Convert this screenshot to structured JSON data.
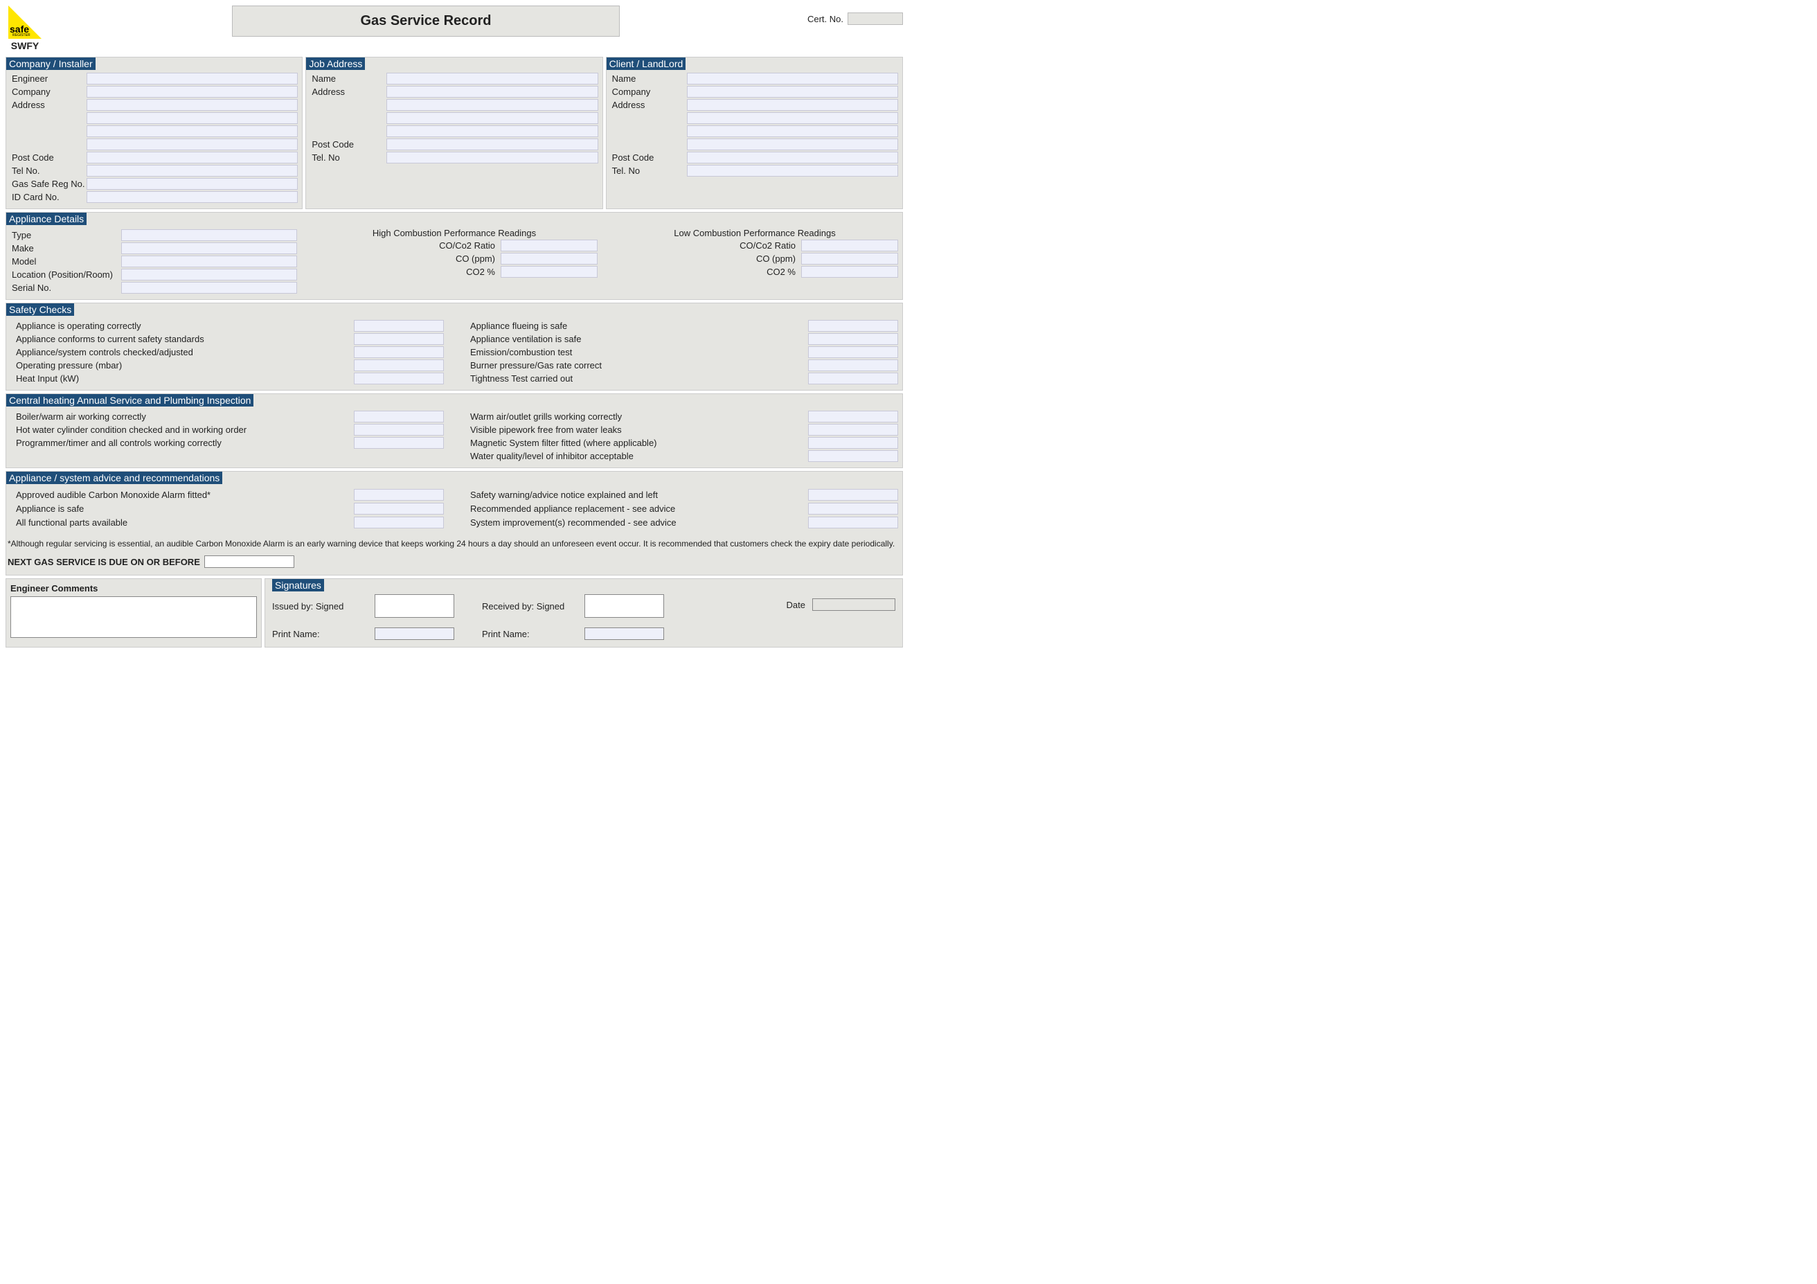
{
  "header": {
    "logo_text": "safe",
    "logo_sub": "REGISTER",
    "logo_caption": "SWFY",
    "title": "Gas Service Record",
    "cert_label": "Cert. No."
  },
  "company": {
    "title": "Company / Installer",
    "labels": {
      "engineer": "Engineer",
      "company": "Company",
      "address": "Address",
      "postcode": "Post Code",
      "tel": "Tel No.",
      "gasreg": "Gas Safe Reg No.",
      "idcard": "ID Card No."
    }
  },
  "job": {
    "title": "Job Address",
    "labels": {
      "name": "Name",
      "address": "Address",
      "postcode": "Post Code",
      "tel": "Tel. No"
    }
  },
  "client": {
    "title": "Client / LandLord",
    "labels": {
      "name": "Name",
      "company": "Company",
      "address": "Address",
      "postcode": "Post Code",
      "tel": "Tel. No"
    }
  },
  "appliance": {
    "title": "Appliance Details",
    "labels": {
      "type": "Type",
      "make": "Make",
      "model": "Model",
      "location": "Location (Position/Room)",
      "serial": "Serial No."
    },
    "high_title": "High Combustion Performance Readings",
    "low_title": "Low Combustion Performance Readings",
    "perf_labels": {
      "ratio": "CO/Co2 Ratio",
      "co": "CO (ppm)",
      "co2": "CO2 %"
    }
  },
  "safety": {
    "title": "Safety Checks",
    "left": [
      "Appliance is operating correctly",
      "Appliance conforms to current safety standards",
      "Appliance/system controls checked/adjusted",
      "Operating pressure (mbar)",
      "Heat Input (kW)"
    ],
    "right": [
      "Appliance flueing is safe",
      "Appliance ventilation is safe",
      "Emission/combustion test",
      "Burner pressure/Gas rate correct",
      "Tightness Test carried out"
    ]
  },
  "central": {
    "title": "Central heating Annual Service and Plumbing Inspection",
    "left": [
      "Boiler/warm air working correctly",
      "Hot water cylinder condition checked and in working order",
      "Programmer/timer and all controls working correctly"
    ],
    "right": [
      "Warm air/outlet grills working correctly",
      "Visible pipework free from water leaks",
      "Magnetic System filter fitted (where applicable)",
      "Water quality/level of inhibitor acceptable"
    ]
  },
  "advice": {
    "title": "Appliance / system advice and recommendations",
    "left": [
      "Approved audible Carbon Monoxide Alarm fitted*",
      "Appliance is safe",
      "All functional parts available"
    ],
    "right": [
      "Safety warning/advice notice explained and left",
      "Recommended appliance replacement - see advice",
      "System improvement(s) recommended - see advice"
    ]
  },
  "footnote": "*Although regular servicing is essential, an audible Carbon Monoxide Alarm is an early warning device that keeps working 24 hours a day should an unforeseen event occur. It is recommended that customers check the expiry date periodically.",
  "next_service_label": "NEXT GAS SERVICE IS DUE ON OR BEFORE",
  "comments": {
    "title": "Engineer Comments"
  },
  "signatures": {
    "title": "Signatures",
    "issued_label": "Issued by: Signed",
    "received_label": "Received by: Signed",
    "print_label": "Print Name:",
    "date_label": "Date"
  },
  "colors": {
    "section_header_bg": "#1f4e79",
    "section_header_fg": "#ffffff",
    "panel_bg": "#e5e5e1",
    "input_bg": "#eef0fa",
    "logo_fill": "#ffe600"
  }
}
